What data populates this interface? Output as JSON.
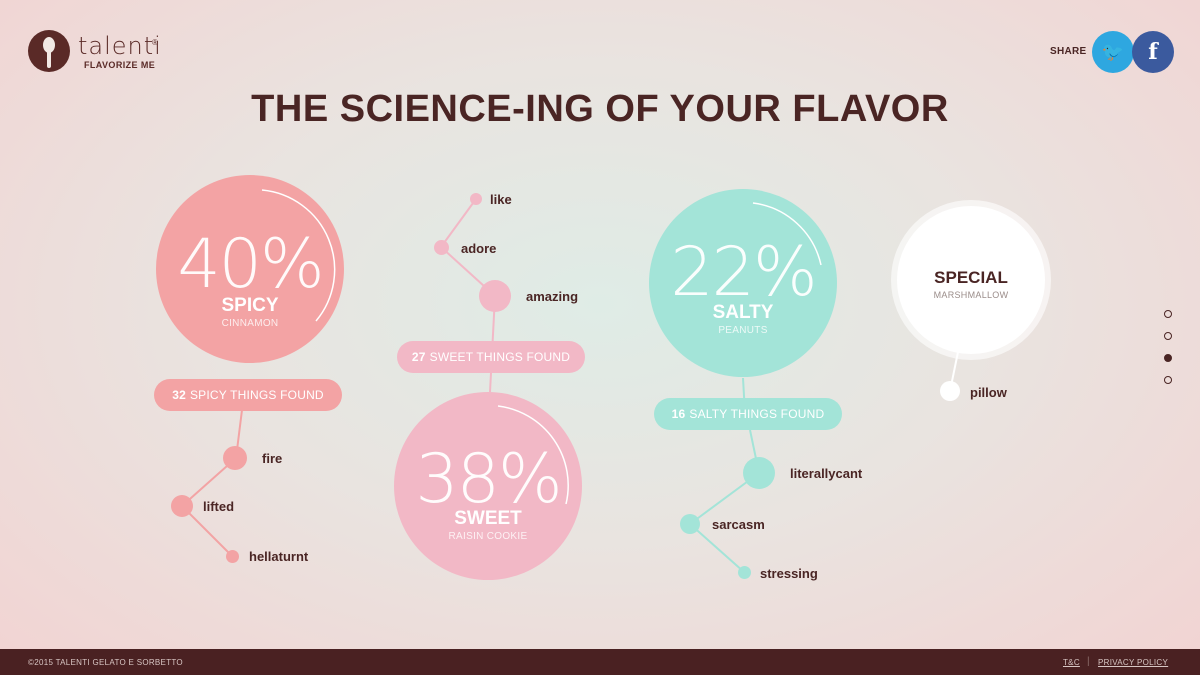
{
  "header": {
    "brand": "talenti",
    "registered": "®",
    "tagline": "FLAVORIZE ME",
    "share_label": "SHARE",
    "twitter_glyph": "🐦",
    "facebook_glyph": "f"
  },
  "title": "THE SCIENCE-ING OF YOUR FLAVOR",
  "flavors": {
    "spicy": {
      "percent": "40%",
      "percent_value": 40,
      "name": "SPICY",
      "sub": "CINNAMON",
      "found_count": "32",
      "found_label": "SPICY THINGS FOUND",
      "color": "#f3a3a4",
      "words": [
        "fire",
        "lifted",
        "hellaturnt"
      ]
    },
    "sweet": {
      "percent": "38%",
      "percent_value": 38,
      "name": "SWEET",
      "sub": "RAISIN COOKIE",
      "found_count": "27",
      "found_label": "SWEET THINGS FOUND",
      "color": "#f2b8c6",
      "words": [
        "like",
        "adore",
        "amazing"
      ]
    },
    "salty": {
      "percent": "22%",
      "percent_value": 22,
      "name": "SALTY",
      "sub": "PEANUTS",
      "found_count": "16",
      "found_label": "SALTY THINGS FOUND",
      "color": "#a3e4d8",
      "words": [
        "literallycant",
        "sarcasm",
        "stressing"
      ]
    },
    "special": {
      "name": "SPECIAL",
      "sub": "MARSHMALLOW",
      "color": "#ffffff",
      "words": [
        "pillow"
      ]
    }
  },
  "pager": {
    "count": 4,
    "active_index": 2
  },
  "footer": {
    "copyright": "©2015 TALENTI GELATO E SORBETTO",
    "tc": "T&C",
    "separator": "|",
    "privacy": "PRIVACY POLICY"
  },
  "colors": {
    "brown": "#4a2524",
    "twitter": "#2ea7e0",
    "facebook": "#3b5a9e"
  }
}
